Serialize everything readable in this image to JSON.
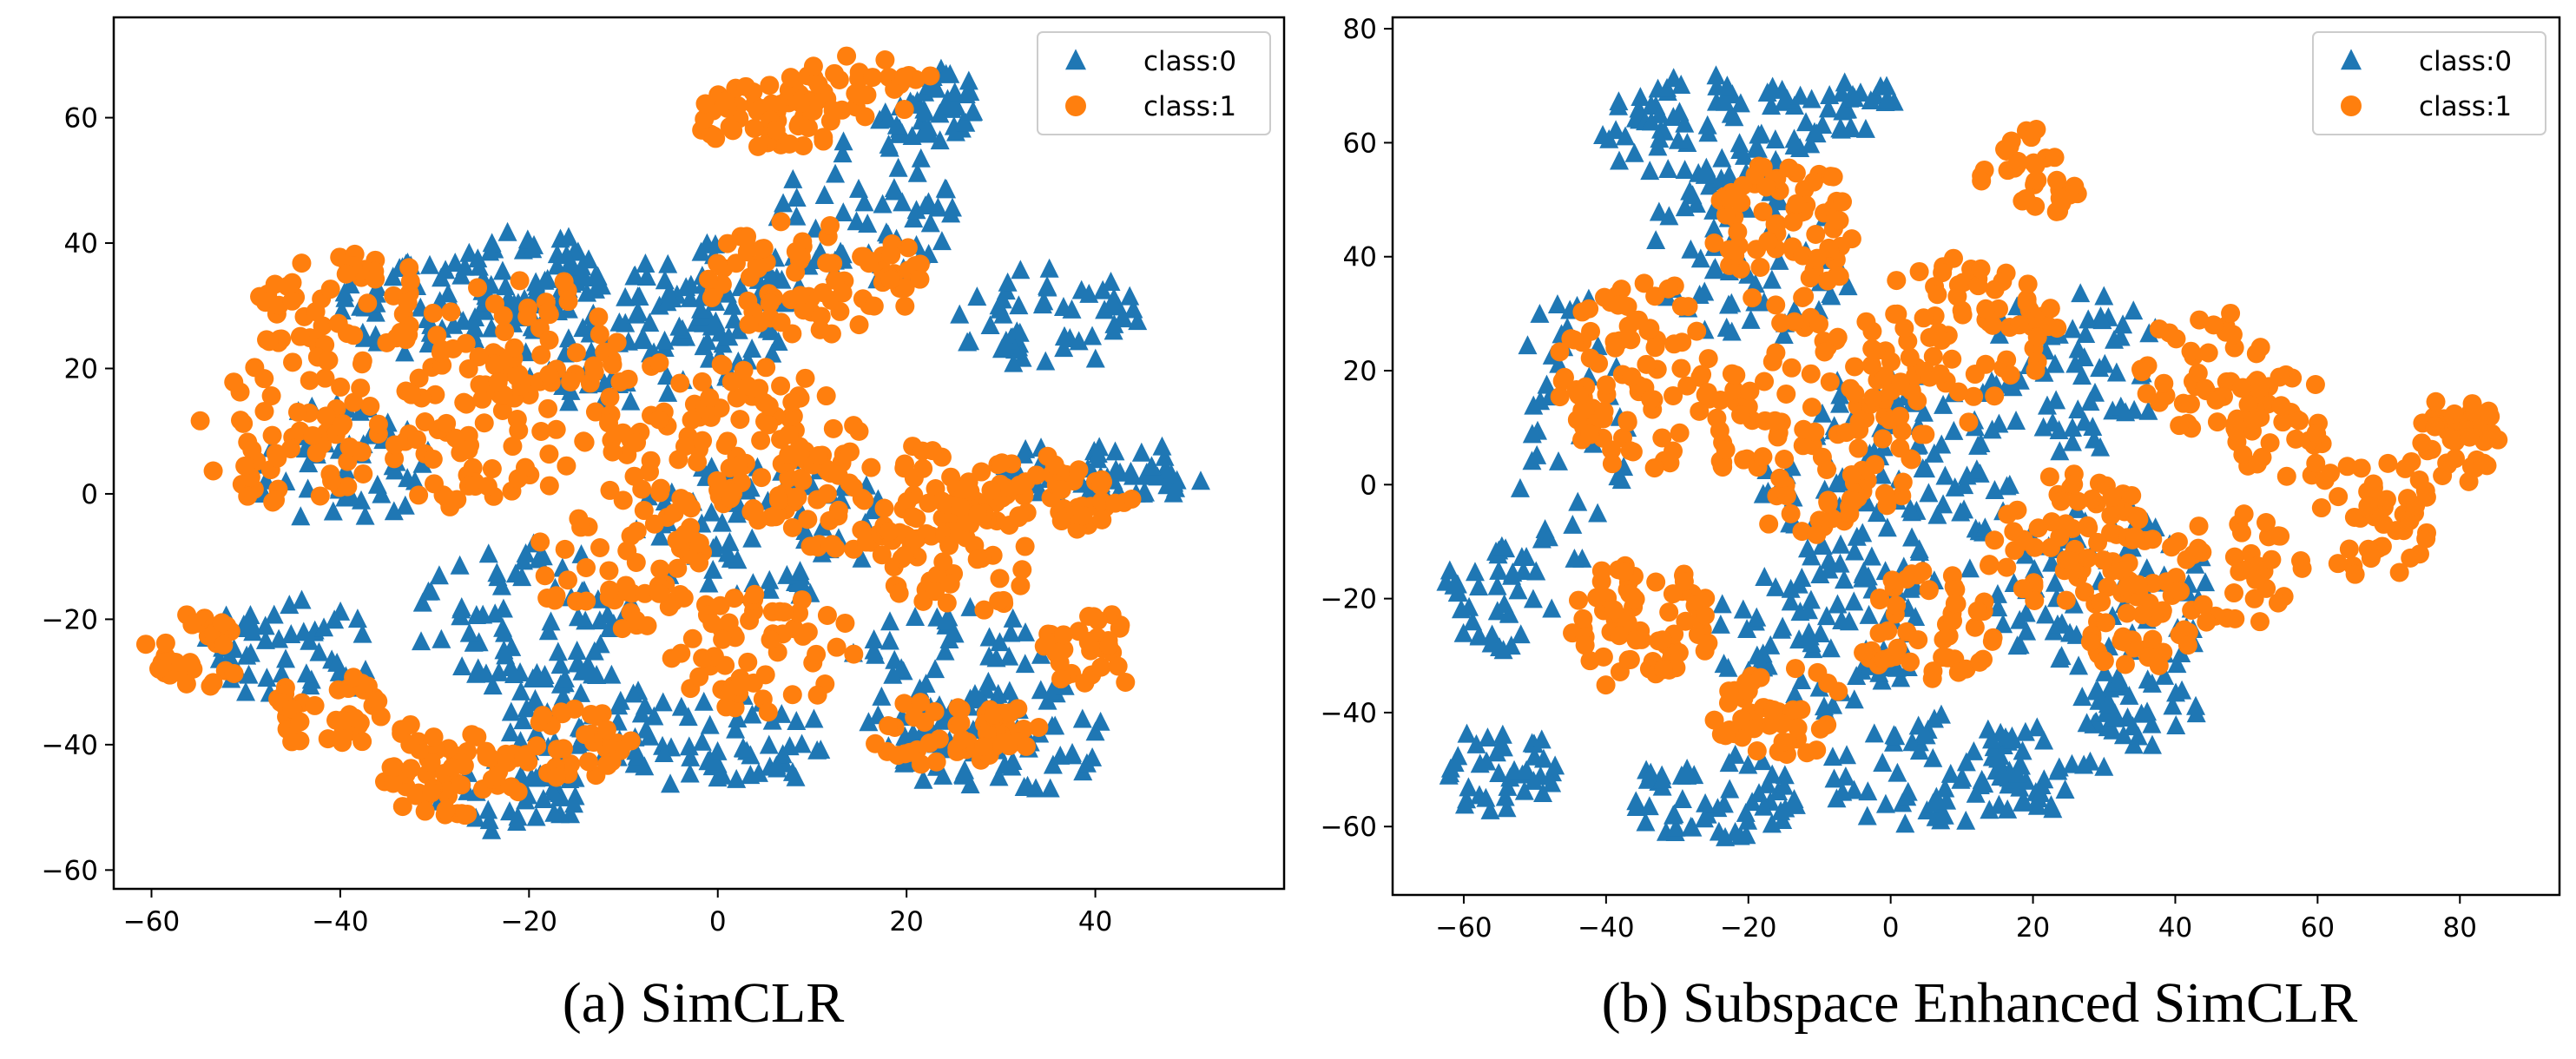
{
  "captions": {
    "a": "(a) SimCLR",
    "b": "(b) Subspace Enhanced SimCLR"
  },
  "colors": {
    "class0": "#1f77b4",
    "class1": "#ff7f0e"
  },
  "legend_position": "top-right",
  "chart_data": [
    {
      "type": "scatter",
      "title": "",
      "xlabel": "",
      "ylabel": "",
      "xlim": [
        -64,
        60
      ],
      "ylim": [
        -63,
        76
      ],
      "xticks": [
        -60,
        -40,
        -20,
        0,
        20,
        40
      ],
      "yticks": [
        -60,
        -40,
        -20,
        0,
        20,
        40,
        60
      ],
      "grid": false,
      "legend": [
        "class:0",
        "class:1"
      ],
      "series": [
        {
          "name": "class:0",
          "marker": "triangle",
          "regions": [
            {
              "cx": -30,
              "cy": 30,
              "rx": 10,
              "ry": 8,
              "n": 60
            },
            {
              "cx": -20,
              "cy": 35,
              "rx": 8,
              "ry": 7,
              "n": 45
            },
            {
              "cx": -10,
              "cy": 25,
              "rx": 14,
              "ry": 12,
              "n": 80
            },
            {
              "cx": 0,
              "cy": 30,
              "rx": 10,
              "ry": 10,
              "n": 60
            },
            {
              "cx": 15,
              "cy": 45,
              "rx": 10,
              "ry": 12,
              "n": 60
            },
            {
              "cx": 22,
              "cy": 62,
              "rx": 6,
              "ry": 6,
              "n": 50
            },
            {
              "cx": 35,
              "cy": 28,
              "rx": 10,
              "ry": 8,
              "n": 55
            },
            {
              "cx": 40,
              "cy": 4,
              "rx": 10,
              "ry": 5,
              "n": 40
            },
            {
              "cx": 45,
              "cy": 2,
              "rx": 7,
              "ry": 3,
              "n": 20
            },
            {
              "cx": 25,
              "cy": -30,
              "rx": 12,
              "ry": 12,
              "n": 70
            },
            {
              "cx": 30,
              "cy": -40,
              "rx": 12,
              "ry": 8,
              "n": 55
            },
            {
              "cx": 0,
              "cy": -40,
              "rx": 12,
              "ry": 8,
              "n": 60
            },
            {
              "cx": -20,
              "cy": -20,
              "rx": 12,
              "ry": 12,
              "n": 70
            },
            {
              "cx": -22,
              "cy": -48,
              "rx": 8,
              "ry": 6,
              "n": 40
            },
            {
              "cx": -45,
              "cy": -25,
              "rx": 10,
              "ry": 8,
              "n": 50
            },
            {
              "cx": -40,
              "cy": 5,
              "rx": 10,
              "ry": 10,
              "n": 50
            },
            {
              "cx": 5,
              "cy": -5,
              "rx": 14,
              "ry": 12,
              "n": 80
            },
            {
              "cx": -15,
              "cy": -35,
              "rx": 8,
              "ry": 8,
              "n": 40
            }
          ]
        },
        {
          "name": "class:1",
          "marker": "circle",
          "regions": [
            {
              "cx": -40,
              "cy": 30,
              "rx": 10,
              "ry": 10,
              "n": 60
            },
            {
              "cx": -45,
              "cy": 10,
              "rx": 10,
              "ry": 12,
              "n": 60
            },
            {
              "cx": -25,
              "cy": 10,
              "rx": 10,
              "ry": 14,
              "n": 70
            },
            {
              "cx": -55,
              "cy": -25,
              "rx": 6,
              "ry": 6,
              "n": 35
            },
            {
              "cx": -40,
              "cy": -35,
              "rx": 8,
              "ry": 6,
              "n": 40
            },
            {
              "cx": -28,
              "cy": -45,
              "rx": 8,
              "ry": 7,
              "n": 60
            },
            {
              "cx": -15,
              "cy": -40,
              "rx": 6,
              "ry": 6,
              "n": 35
            },
            {
              "cx": 5,
              "cy": 60,
              "rx": 8,
              "ry": 6,
              "n": 55
            },
            {
              "cx": 15,
              "cy": 65,
              "rx": 8,
              "ry": 5,
              "n": 35
            },
            {
              "cx": 10,
              "cy": 35,
              "rx": 12,
              "ry": 10,
              "n": 80
            },
            {
              "cx": 0,
              "cy": 10,
              "rx": 15,
              "ry": 12,
              "n": 100
            },
            {
              "cx": 15,
              "cy": 0,
              "rx": 12,
              "ry": 10,
              "n": 70
            },
            {
              "cx": 25,
              "cy": -10,
              "rx": 8,
              "ry": 10,
              "n": 60
            },
            {
              "cx": 35,
              "cy": 0,
              "rx": 10,
              "ry": 6,
              "n": 60
            },
            {
              "cx": 25,
              "cy": -38,
              "rx": 10,
              "ry": 6,
              "n": 55
            },
            {
              "cx": 5,
              "cy": -25,
              "rx": 10,
              "ry": 10,
              "n": 60
            },
            {
              "cx": -10,
              "cy": -10,
              "rx": 10,
              "ry": 12,
              "n": 60
            },
            {
              "cx": -20,
              "cy": 25,
              "rx": 10,
              "ry": 10,
              "n": 50
            },
            {
              "cx": 40,
              "cy": -25,
              "rx": 6,
              "ry": 6,
              "n": 35
            }
          ]
        }
      ]
    },
    {
      "type": "scatter",
      "title": "",
      "xlabel": "",
      "ylabel": "",
      "xlim": [
        -70,
        94
      ],
      "ylim": [
        -72,
        82
      ],
      "xticks": [
        -60,
        -40,
        -20,
        0,
        20,
        40,
        60,
        80
      ],
      "yticks": [
        -60,
        -40,
        -20,
        0,
        20,
        40,
        60,
        80
      ],
      "grid": false,
      "legend": [
        "class:0",
        "class:1"
      ],
      "series": [
        {
          "name": "class:0",
          "marker": "triangle",
          "regions": [
            {
              "cx": -25,
              "cy": 62,
              "rx": 16,
              "ry": 10,
              "n": 80
            },
            {
              "cx": -5,
              "cy": 66,
              "rx": 8,
              "ry": 5,
              "n": 25
            },
            {
              "cx": -55,
              "cy": -50,
              "rx": 8,
              "ry": 8,
              "n": 40
            },
            {
              "cx": -55,
              "cy": -20,
              "rx": 8,
              "ry": 10,
              "n": 40
            },
            {
              "cx": -45,
              "cy": 10,
              "rx": 8,
              "ry": 25,
              "n": 40
            },
            {
              "cx": -25,
              "cy": -55,
              "rx": 12,
              "ry": 8,
              "n": 55
            },
            {
              "cx": 5,
              "cy": -50,
              "rx": 15,
              "ry": 10,
              "n": 60
            },
            {
              "cx": 20,
              "cy": -50,
              "rx": 10,
              "ry": 8,
              "n": 40
            },
            {
              "cx": 30,
              "cy": -20,
              "rx": 15,
              "ry": 18,
              "n": 80
            },
            {
              "cx": 25,
              "cy": 20,
              "rx": 14,
              "ry": 15,
              "n": 70
            },
            {
              "cx": 0,
              "cy": 0,
              "rx": 18,
              "ry": 20,
              "n": 110
            },
            {
              "cx": -20,
              "cy": 40,
              "rx": 15,
              "ry": 15,
              "n": 60
            },
            {
              "cx": -10,
              "cy": -25,
              "rx": 15,
              "ry": 15,
              "n": 80
            },
            {
              "cx": 35,
              "cy": -40,
              "rx": 8,
              "ry": 6,
              "n": 35
            }
          ]
        },
        {
          "name": "class:1",
          "marker": "circle",
          "regions": [
            {
              "cx": -35,
              "cy": 20,
              "rx": 12,
              "ry": 18,
              "n": 90
            },
            {
              "cx": -15,
              "cy": 45,
              "rx": 10,
              "ry": 15,
              "n": 70
            },
            {
              "cx": -35,
              "cy": -25,
              "rx": 10,
              "ry": 12,
              "n": 70
            },
            {
              "cx": -15,
              "cy": -40,
              "rx": 10,
              "ry": 8,
              "n": 45
            },
            {
              "cx": -10,
              "cy": 10,
              "rx": 15,
              "ry": 20,
              "n": 110
            },
            {
              "cx": 10,
              "cy": 25,
              "rx": 14,
              "ry": 15,
              "n": 80
            },
            {
              "cx": 20,
              "cy": 55,
              "rx": 8,
              "ry": 8,
              "n": 35
            },
            {
              "cx": 25,
              "cy": -10,
              "rx": 12,
              "ry": 12,
              "n": 70
            },
            {
              "cx": 35,
              "cy": -25,
              "rx": 8,
              "ry": 8,
              "n": 40
            },
            {
              "cx": 45,
              "cy": 20,
              "rx": 10,
              "ry": 12,
              "n": 50
            },
            {
              "cx": 55,
              "cy": 10,
              "rx": 8,
              "ry": 10,
              "n": 35
            },
            {
              "cx": 48,
              "cy": -15,
              "rx": 10,
              "ry": 10,
              "n": 40
            },
            {
              "cx": 68,
              "cy": -5,
              "rx": 8,
              "ry": 12,
              "n": 45
            },
            {
              "cx": 80,
              "cy": 8,
              "rx": 6,
              "ry": 8,
              "n": 40
            },
            {
              "cx": 5,
              "cy": -25,
              "rx": 10,
              "ry": 10,
              "n": 50
            }
          ]
        }
      ]
    }
  ]
}
